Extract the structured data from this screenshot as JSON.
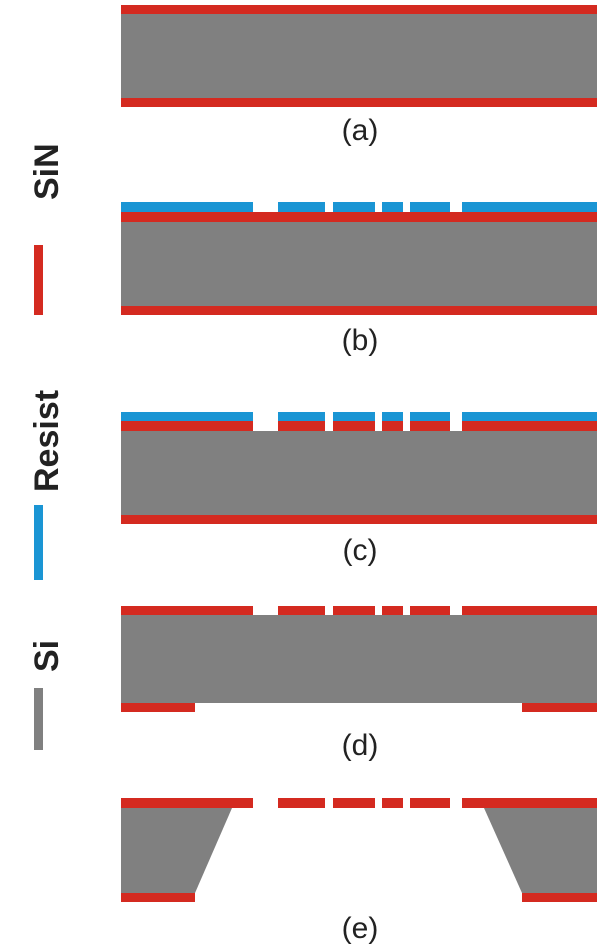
{
  "legend": {
    "items": [
      {
        "label": "SiN"
      },
      {
        "label": "Resist"
      },
      {
        "label": "Si"
      }
    ]
  },
  "panels": [
    {
      "label": "(a)"
    },
    {
      "label": "(b)"
    },
    {
      "label": "(c)"
    },
    {
      "label": "(d)"
    },
    {
      "label": "(e)"
    }
  ]
}
